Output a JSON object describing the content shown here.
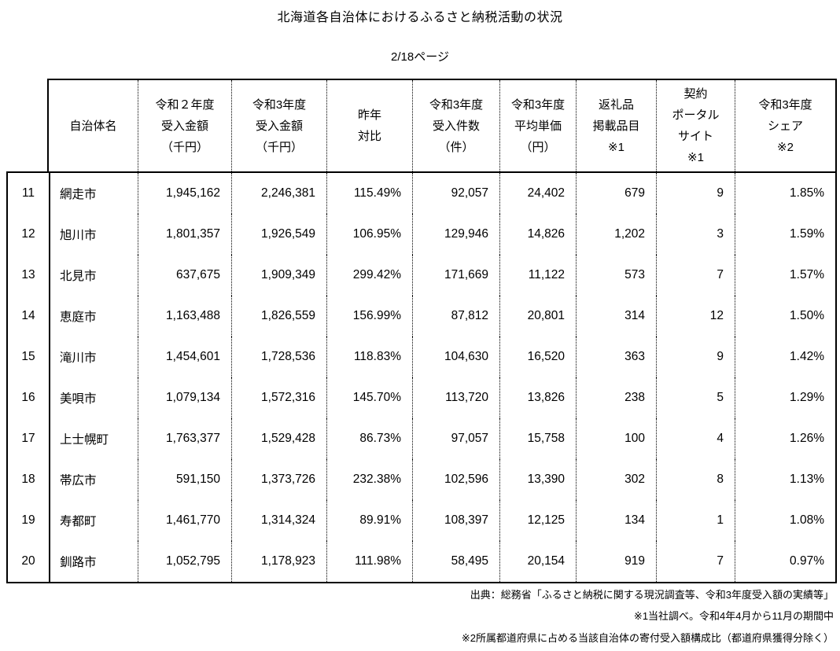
{
  "page": {
    "title": "北海道各自治体におけるふるさと納税活動の状況",
    "page_indicator": "2/18ページ"
  },
  "colors": {
    "background": "#ffffff",
    "text": "#000000",
    "border": "#000000"
  },
  "table": {
    "columns": [
      {
        "key": "name",
        "label": "自治体名"
      },
      {
        "key": "r2_amount",
        "label": "令和２年度\n受入金額\n（千円）"
      },
      {
        "key": "r3_amount",
        "label": "令和3年度\n受入金額\n（千円）"
      },
      {
        "key": "yoy",
        "label": "昨年\n対比"
      },
      {
        "key": "count",
        "label": "令和3年度\n受入件数\n（件）"
      },
      {
        "key": "avg_price",
        "label": "令和3年度\n平均単価\n（円）"
      },
      {
        "key": "gift_items",
        "label": "返礼品\n掲載品目\n※1"
      },
      {
        "key": "portal_sites",
        "label": "契約\nポータル\nサイト\n※1"
      },
      {
        "key": "share",
        "label": "令和3年度\nシェア\n※2"
      }
    ],
    "rows": [
      {
        "no": "11",
        "name": "網走市",
        "r2_amount": "1,945,162",
        "r3_amount": "2,246,381",
        "yoy": "115.49%",
        "count": "92,057",
        "avg_price": "24,402",
        "gift_items": "679",
        "portal_sites": "9",
        "share": "1.85%"
      },
      {
        "no": "12",
        "name": "旭川市",
        "r2_amount": "1,801,357",
        "r3_amount": "1,926,549",
        "yoy": "106.95%",
        "count": "129,946",
        "avg_price": "14,826",
        "gift_items": "1,202",
        "portal_sites": "3",
        "share": "1.59%"
      },
      {
        "no": "13",
        "name": "北見市",
        "r2_amount": "637,675",
        "r3_amount": "1,909,349",
        "yoy": "299.42%",
        "count": "171,669",
        "avg_price": "11,122",
        "gift_items": "573",
        "portal_sites": "7",
        "share": "1.57%"
      },
      {
        "no": "14",
        "name": "恵庭市",
        "r2_amount": "1,163,488",
        "r3_amount": "1,826,559",
        "yoy": "156.99%",
        "count": "87,812",
        "avg_price": "20,801",
        "gift_items": "314",
        "portal_sites": "12",
        "share": "1.50%"
      },
      {
        "no": "15",
        "name": "滝川市",
        "r2_amount": "1,454,601",
        "r3_amount": "1,728,536",
        "yoy": "118.83%",
        "count": "104,630",
        "avg_price": "16,520",
        "gift_items": "363",
        "portal_sites": "9",
        "share": "1.42%"
      },
      {
        "no": "16",
        "name": "美唄市",
        "r2_amount": "1,079,134",
        "r3_amount": "1,572,316",
        "yoy": "145.70%",
        "count": "113,720",
        "avg_price": "13,826",
        "gift_items": "238",
        "portal_sites": "5",
        "share": "1.29%"
      },
      {
        "no": "17",
        "name": "上士幌町",
        "r2_amount": "1,763,377",
        "r3_amount": "1,529,428",
        "yoy": "86.73%",
        "count": "97,057",
        "avg_price": "15,758",
        "gift_items": "100",
        "portal_sites": "4",
        "share": "1.26%"
      },
      {
        "no": "18",
        "name": "帯広市",
        "r2_amount": "591,150",
        "r3_amount": "1,373,726",
        "yoy": "232.38%",
        "count": "102,596",
        "avg_price": "13,390",
        "gift_items": "302",
        "portal_sites": "8",
        "share": "1.13%"
      },
      {
        "no": "19",
        "name": "寿都町",
        "r2_amount": "1,461,770",
        "r3_amount": "1,314,324",
        "yoy": "89.91%",
        "count": "108,397",
        "avg_price": "12,125",
        "gift_items": "134",
        "portal_sites": "1",
        "share": "1.08%"
      },
      {
        "no": "20",
        "name": "釧路市",
        "r2_amount": "1,052,795",
        "r3_amount": "1,178,923",
        "yoy": "111.98%",
        "count": "58,495",
        "avg_price": "20,154",
        "gift_items": "919",
        "portal_sites": "7",
        "share": "0.97%"
      }
    ]
  },
  "footnotes": [
    "出典：総務省「ふるさと納税に関する現況調査等、令和3年度受入額の実績等」",
    "※1当社調べ。令和4年4月から11月の期間中",
    "※2所属都道府県に占める当該自治体の寄付受入額構成比（都道府県獲得分除く）"
  ]
}
